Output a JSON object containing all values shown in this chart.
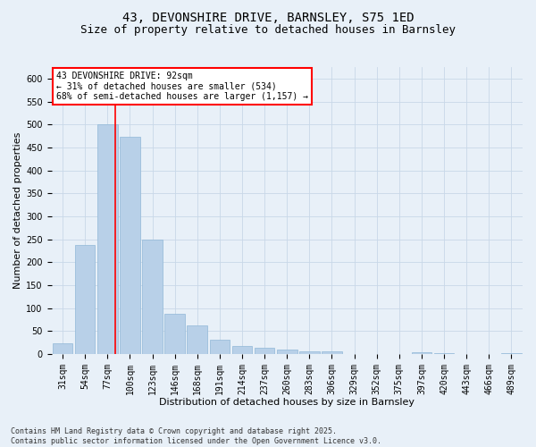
{
  "title1": "43, DEVONSHIRE DRIVE, BARNSLEY, S75 1ED",
  "title2": "Size of property relative to detached houses in Barnsley",
  "xlabel": "Distribution of detached houses by size in Barnsley",
  "ylabel": "Number of detached properties",
  "categories": [
    "31sqm",
    "54sqm",
    "77sqm",
    "100sqm",
    "123sqm",
    "146sqm",
    "168sqm",
    "191sqm",
    "214sqm",
    "237sqm",
    "260sqm",
    "283sqm",
    "306sqm",
    "329sqm",
    "352sqm",
    "375sqm",
    "397sqm",
    "420sqm",
    "443sqm",
    "466sqm",
    "489sqm"
  ],
  "values": [
    23,
    237,
    500,
    473,
    250,
    87,
    63,
    30,
    18,
    13,
    9,
    6,
    5,
    0,
    0,
    0,
    4,
    2,
    0,
    0,
    1
  ],
  "bar_color": "#b8d0e8",
  "bar_edge_color": "#90b8d8",
  "grid_color": "#c8d8e8",
  "background_color": "#e8f0f8",
  "vline_color": "red",
  "vline_x": 2.35,
  "annotation_text": "43 DEVONSHIRE DRIVE: 92sqm\n← 31% of detached houses are smaller (534)\n68% of semi-detached houses are larger (1,157) →",
  "annotation_box_color": "white",
  "annotation_box_edge": "red",
  "ylim": [
    0,
    625
  ],
  "yticks": [
    0,
    50,
    100,
    150,
    200,
    250,
    300,
    350,
    400,
    450,
    500,
    550,
    600
  ],
  "footer": "Contains HM Land Registry data © Crown copyright and database right 2025.\nContains public sector information licensed under the Open Government Licence v3.0.",
  "title_fontsize": 10,
  "subtitle_fontsize": 9,
  "label_fontsize": 8,
  "tick_fontsize": 7,
  "annot_fontsize": 7,
  "footer_fontsize": 6
}
